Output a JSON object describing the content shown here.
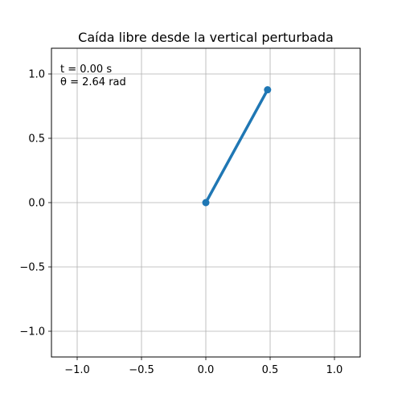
{
  "chart_data": {
    "type": "line",
    "title": "Caída libre desde la vertical perturbada",
    "xlabel": "",
    "ylabel": "",
    "xlim": [
      -1.2,
      1.2
    ],
    "ylim": [
      -1.2,
      1.2
    ],
    "xticks": [
      -1.0,
      -0.5,
      0.0,
      0.5,
      1.0
    ],
    "yticks": [
      -1.0,
      -0.5,
      0.0,
      0.5,
      1.0
    ],
    "xtick_labels": [
      "−1.0",
      "−0.5",
      "0.0",
      "0.5",
      "1.0"
    ],
    "ytick_labels": [
      "−1.0",
      "−0.5",
      "0.0",
      "0.5",
      "1.0"
    ],
    "grid": true,
    "series": [
      {
        "x": [
          0.0,
          0.48
        ],
        "y": [
          0.0,
          0.877
        ],
        "color": "#1f77b4"
      }
    ],
    "annotations": {
      "time_text": "t = 0.00 s",
      "angle_text": "θ = 2.64 rad"
    }
  }
}
